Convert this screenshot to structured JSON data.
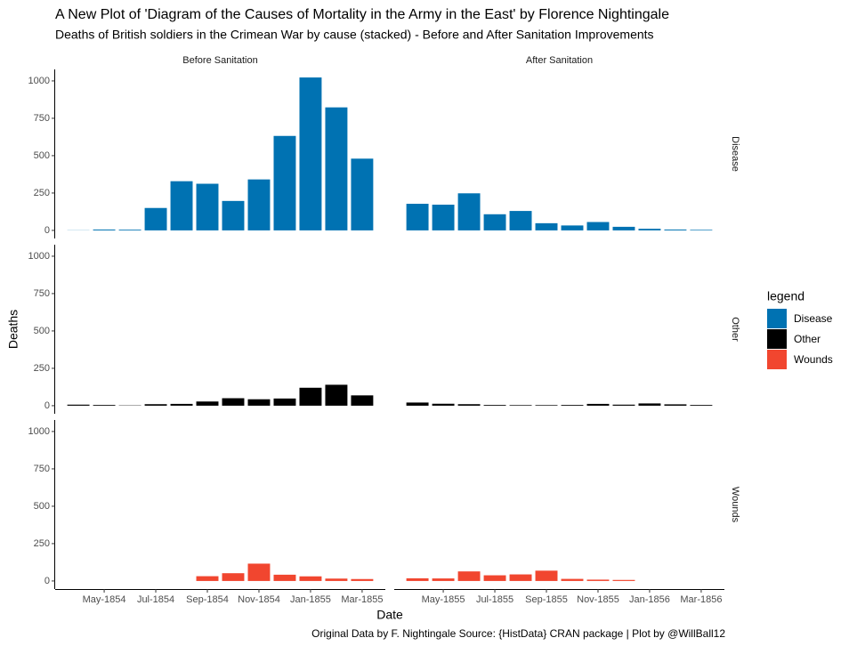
{
  "chart_data": {
    "type": "bar",
    "title": "A New Plot of 'Diagram of the Causes of Mortality in the Army in the East' by Florence Nightingale",
    "subtitle": "Deaths of British soldiers in the Crimean War by cause (stacked) - Before and After Sanitation Improvements",
    "caption": "Original Data by F. Nightingale Source: {HistData} CRAN package | Plot by @WillBall12",
    "x_label": "Date",
    "y_label": "Deaths",
    "legend_title": "legend",
    "legend_position": "right",
    "facets": [
      {
        "label": "Before Sanitation",
        "categories": [
          null,
          "May-1854",
          null,
          "Jul-1854",
          null,
          "Sep-1854",
          null,
          "Nov-1854",
          null,
          "Jan-1855",
          null,
          "Mar-1855"
        ]
      },
      {
        "label": "After Sanitation",
        "categories": [
          null,
          "May-1855",
          null,
          "Jul-1855",
          null,
          "Sep-1855",
          null,
          "Nov-1855",
          null,
          "Jan-1856",
          null,
          "Mar-1856"
        ]
      }
    ],
    "series": [
      {
        "name": "Disease",
        "color": "#0072b2",
        "values": [
          [
            1,
            6,
            5,
            150,
            329,
            312,
            197,
            341,
            632,
            1023,
            823,
            480
          ],
          [
            178,
            172,
            248,
            108,
            130,
            48,
            33,
            56,
            24,
            11,
            6,
            4
          ]
        ]
      },
      {
        "name": "Other",
        "color": "#000000",
        "values": [
          [
            7,
            5,
            2,
            10,
            12,
            28,
            50,
            43,
            48,
            120,
            140,
            69
          ],
          [
            21,
            13,
            10,
            5,
            4,
            4,
            5,
            12,
            7,
            15,
            9,
            5
          ]
        ]
      },
      {
        "name": "Wounds",
        "color": "#f1462f",
        "values": [
          [
            0,
            0,
            0,
            0,
            0,
            32,
            52,
            116,
            42,
            31,
            16,
            13
          ],
          [
            18,
            17,
            64,
            38,
            44,
            69,
            14,
            9,
            7,
            0,
            0,
            0
          ]
        ]
      }
    ],
    "ylim": [
      -54,
      1077
    ],
    "yticks": [
      0,
      250,
      500,
      750,
      1000
    ],
    "grid": false
  }
}
